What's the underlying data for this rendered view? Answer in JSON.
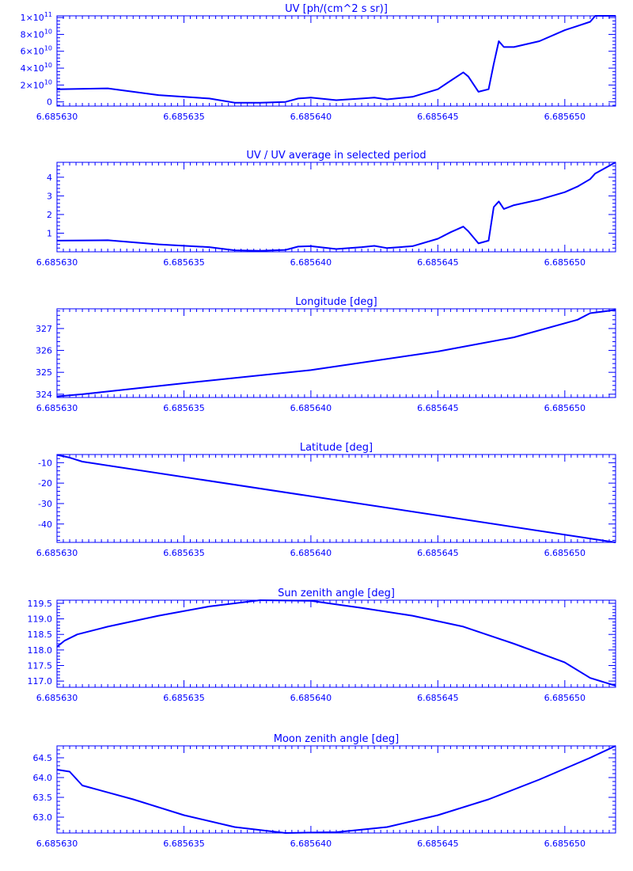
{
  "colors": {
    "plot": "#0000ff",
    "background": "#ffffff"
  },
  "chart_data": [
    {
      "type": "line",
      "title": "UV [ph/(cm^2 s sr)]",
      "xlim": [
        6.68563,
        6.685652
      ],
      "ylim": [
        -5000000000.0,
        102000000000.0
      ],
      "x_tick_labels": [
        "6.685630",
        "6.685635",
        "6.685640",
        "6.685645",
        "6.685650"
      ],
      "x_tick_values": [
        6.68563,
        6.685635,
        6.68564,
        6.685645,
        6.68565
      ],
      "y_tick_values": [
        0,
        20000000000.0,
        40000000000.0,
        60000000000.0,
        80000000000.0,
        100000000000.0
      ],
      "y_tick_labels": [
        {
          "mantissa": "0",
          "exp": ""
        },
        {
          "mantissa": "2×10",
          "exp": "10"
        },
        {
          "mantissa": "4×10",
          "exp": "10"
        },
        {
          "mantissa": "6×10",
          "exp": "10"
        },
        {
          "mantissa": "8×10",
          "exp": "10"
        },
        {
          "mantissa": "1×10",
          "exp": "11"
        }
      ],
      "series": [
        {
          "x": [
            6.68563,
            6.685632,
            6.685634,
            6.685636,
            6.685637,
            6.685638,
            6.685639,
            6.6856395,
            6.68564,
            6.685641,
            6.685642,
            6.6856425,
            6.685643,
            6.685644,
            6.685645,
            6.6856455,
            6.685646,
            6.6856462,
            6.6856466,
            6.685647,
            6.6856472,
            6.6856474,
            6.6856476,
            6.685648,
            6.685649,
            6.68565,
            6.6856505,
            6.685651,
            6.6856512,
            6.685652
          ],
          "y": [
            15000000000.0,
            16000000000.0,
            8000000000.0,
            4000000000.0,
            -1000000000.0,
            -1000000000.0,
            0,
            4000000000.0,
            5000000000.0,
            2000000000.0,
            4000000000.0,
            5000000000.0,
            3000000000.0,
            6000000000.0,
            15000000000.0,
            25000000000.0,
            35000000000.0,
            30000000000.0,
            12000000000.0,
            15000000000.0,
            45000000000.0,
            72000000000.0,
            65000000000.0,
            65000000000.0,
            72000000000.0,
            85000000000.0,
            90000000000.0,
            95000000000.0,
            102000000000.0,
            102000000000.0
          ]
        }
      ]
    },
    {
      "type": "line",
      "title": "UV / UV average in selected period",
      "xlim": [
        6.68563,
        6.685652
      ],
      "ylim": [
        0,
        4.8
      ],
      "x_tick_labels": [
        "6.685630",
        "6.685635",
        "6.685640",
        "6.685645",
        "6.685650"
      ],
      "x_tick_values": [
        6.68563,
        6.685635,
        6.68564,
        6.685645,
        6.68565
      ],
      "y_tick_values": [
        1,
        2,
        3,
        4
      ],
      "y_tick_labels": [
        "1",
        "2",
        "3",
        "4"
      ],
      "series": [
        {
          "x": [
            6.68563,
            6.685632,
            6.685634,
            6.685636,
            6.685637,
            6.685638,
            6.685639,
            6.6856395,
            6.68564,
            6.685641,
            6.685642,
            6.6856425,
            6.685643,
            6.685644,
            6.685645,
            6.6856455,
            6.685646,
            6.6856462,
            6.6856466,
            6.685647,
            6.6856472,
            6.6856474,
            6.6856476,
            6.685648,
            6.685649,
            6.68565,
            6.6856505,
            6.685651,
            6.6856512,
            6.685652
          ],
          "y": [
            0.6,
            0.62,
            0.4,
            0.25,
            0.08,
            0.05,
            0.1,
            0.28,
            0.3,
            0.15,
            0.25,
            0.32,
            0.2,
            0.3,
            0.7,
            1.05,
            1.35,
            1.1,
            0.45,
            0.6,
            2.4,
            2.7,
            2.3,
            2.5,
            2.8,
            3.2,
            3.5,
            3.9,
            4.2,
            4.8
          ]
        }
      ]
    },
    {
      "type": "line",
      "title": "Longitude [deg]",
      "xlim": [
        6.68563,
        6.685652
      ],
      "ylim": [
        323.85,
        327.9
      ],
      "x_tick_labels": [
        "6.685630",
        "6.685635",
        "6.685640",
        "6.685645",
        "6.685650"
      ],
      "x_tick_values": [
        6.68563,
        6.685635,
        6.68564,
        6.685645,
        6.68565
      ],
      "y_tick_values": [
        324,
        325,
        326,
        327
      ],
      "y_tick_labels": [
        "324",
        "325",
        "326",
        "327"
      ],
      "series": [
        {
          "x": [
            6.68563,
            6.685631,
            6.685635,
            6.68564,
            6.685645,
            6.685648,
            6.6856505,
            6.685651,
            6.685652
          ],
          "y": [
            323.9,
            324.0,
            324.5,
            325.1,
            325.95,
            326.6,
            327.4,
            327.7,
            327.85
          ]
        }
      ]
    },
    {
      "type": "line",
      "title": "Latitude [deg]",
      "xlim": [
        6.68563,
        6.685652
      ],
      "ylim": [
        -49,
        -6
      ],
      "x_tick_labels": [
        "6.685630",
        "6.685635",
        "6.685640",
        "6.685645",
        "6.685650"
      ],
      "x_tick_values": [
        6.68563,
        6.685635,
        6.68564,
        6.685645,
        6.68565
      ],
      "y_tick_values": [
        -40,
        -30,
        -20,
        -10
      ],
      "y_tick_labels": [
        "-40",
        "-30",
        "-20",
        "-10"
      ],
      "series": [
        {
          "x": [
            6.68563,
            6.6856305,
            6.685631,
            6.685652
          ],
          "y": [
            -6.2,
            -7.5,
            -9.5,
            -49
          ]
        }
      ]
    },
    {
      "type": "line",
      "title": "Sun zenith angle [deg]",
      "xlim": [
        6.68563,
        6.685652
      ],
      "ylim": [
        116.8,
        119.6
      ],
      "x_tick_labels": [
        "6.685630",
        "6.685635",
        "6.685640",
        "6.685645",
        "6.685650"
      ],
      "x_tick_values": [
        6.68563,
        6.685635,
        6.68564,
        6.685645,
        6.68565
      ],
      "y_tick_values": [
        117.0,
        117.5,
        118.0,
        118.5,
        119.0,
        119.5
      ],
      "y_tick_labels": [
        "117.0",
        "117.5",
        "118.0",
        "118.5",
        "119.0",
        "119.5"
      ],
      "series": [
        {
          "x": [
            6.68563,
            6.6856303,
            6.6856308,
            6.685632,
            6.685634,
            6.685636,
            6.685638,
            6.68564,
            6.685642,
            6.685644,
            6.685646,
            6.685648,
            6.68565,
            6.685651,
            6.685652
          ],
          "y": [
            118.1,
            118.3,
            118.5,
            118.75,
            119.1,
            119.4,
            119.6,
            119.58,
            119.35,
            119.1,
            118.75,
            118.2,
            117.6,
            117.1,
            116.85
          ]
        }
      ]
    },
    {
      "type": "line",
      "title": "Moon zenith angle [deg]",
      "xlim": [
        6.68563,
        6.685652
      ],
      "ylim": [
        62.6,
        64.8
      ],
      "x_tick_labels": [
        "6.685630",
        "6.685635",
        "6.685640",
        "6.685645",
        "6.685650"
      ],
      "x_tick_values": [
        6.68563,
        6.685635,
        6.68564,
        6.685645,
        6.68565
      ],
      "y_tick_values": [
        63.0,
        63.5,
        64.0,
        64.5
      ],
      "y_tick_labels": [
        "63.0",
        "63.5",
        "64.0",
        "64.5"
      ],
      "series": [
        {
          "x": [
            6.68563,
            6.6856305,
            6.685631,
            6.685633,
            6.685635,
            6.685637,
            6.685639,
            6.685641,
            6.685643,
            6.685645,
            6.685647,
            6.685649,
            6.685651,
            6.685652
          ],
          "y": [
            64.2,
            64.15,
            63.8,
            63.45,
            63.05,
            62.75,
            62.6,
            62.62,
            62.75,
            63.05,
            63.45,
            63.95,
            64.5,
            64.8
          ]
        }
      ]
    }
  ]
}
